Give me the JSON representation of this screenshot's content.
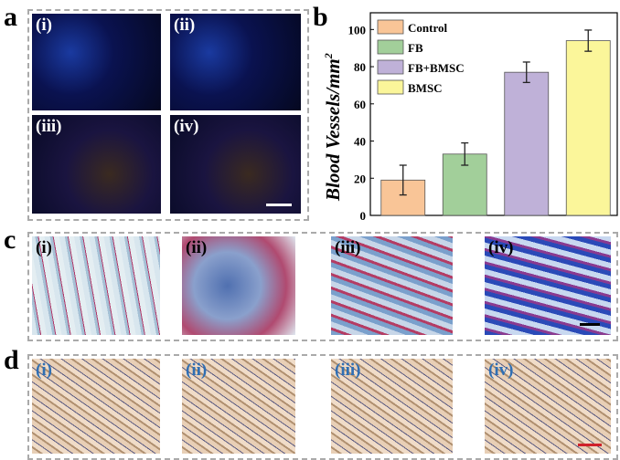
{
  "panels": {
    "a": "a",
    "b": "b",
    "c": "c",
    "d": "d"
  },
  "sublabels": [
    "(i)",
    "(ii)",
    "(iii)",
    "(iv)"
  ],
  "scale_bar_colors": {
    "a": "#ffffff",
    "c": "#000000",
    "d": "#d0202a"
  },
  "chart_data": {
    "type": "bar",
    "categories": [
      "Control",
      "FB",
      "FB+BMSC",
      "BMSC"
    ],
    "values": [
      19,
      33,
      77,
      94
    ],
    "errors": [
      8,
      6,
      5.5,
      5.7
    ],
    "colors": [
      "#f9c597",
      "#a2cf9a",
      "#bfb1d8",
      "#fbf69a"
    ],
    "ylabel": "Blood Vessels/mm",
    "ylabel_sup": "2",
    "ylim": [
      0,
      109
    ],
    "yticks": [
      0,
      20,
      40,
      60,
      80,
      100
    ],
    "legend": "top-left",
    "legend_entries": [
      "Control",
      "FB",
      "FB+BMSC",
      "BMSC"
    ]
  }
}
